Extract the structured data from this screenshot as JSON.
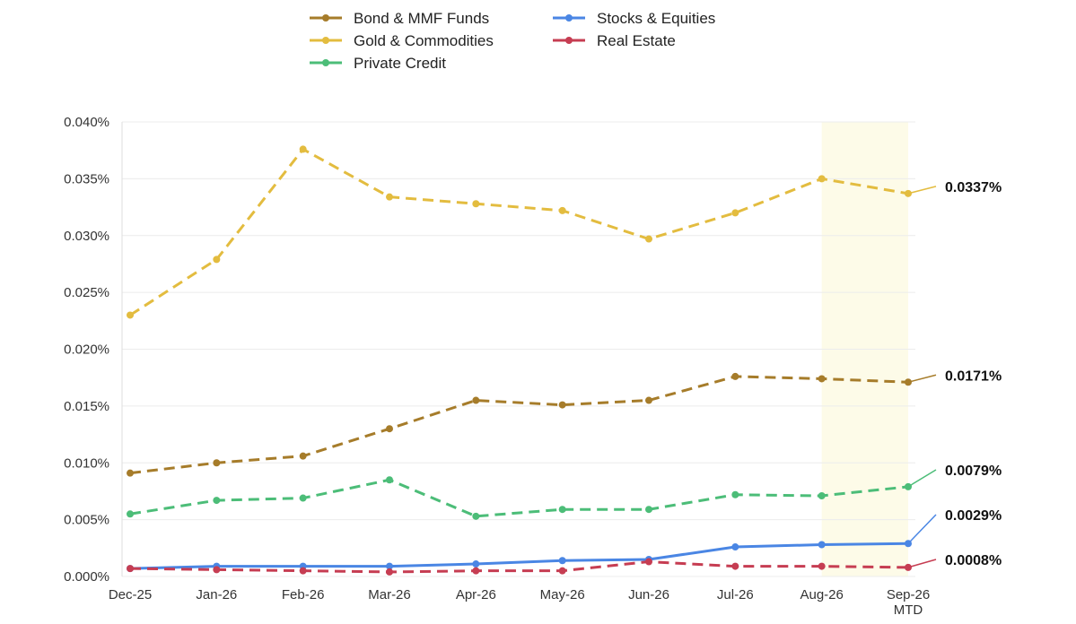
{
  "chart_data": {
    "type": "line",
    "categories": [
      "Dec-25",
      "Jan-26",
      "Feb-26",
      "Mar-26",
      "Apr-26",
      "May-26",
      "Jun-26",
      "Jul-26",
      "Aug-26",
      "Sep-26\nMTD"
    ],
    "ylim": [
      0,
      0.04
    ],
    "yticks": [
      "0.000%",
      "0.005%",
      "0.010%",
      "0.015%",
      "0.020%",
      "0.025%",
      "0.030%",
      "0.035%",
      "0.040%"
    ],
    "grid": "horizontal",
    "legend": "top-center",
    "highlight_categories": [
      "Aug-26",
      "Sep-26\nMTD"
    ],
    "highlight_color": "#fdfbe8",
    "series": [
      {
        "name": "Bond & MMF Funds",
        "color": "#a67c2a",
        "dash": true,
        "end_label": "0.0171%",
        "values": [
          0.0091,
          0.01,
          0.0106,
          0.013,
          0.0155,
          0.0151,
          0.0155,
          0.0176,
          0.0174,
          0.0171
        ]
      },
      {
        "name": "Gold & Commodities",
        "color": "#e3bc3f",
        "dash": true,
        "end_label": "0.0337%",
        "values": [
          0.023,
          0.0279,
          0.0376,
          0.0334,
          0.0328,
          0.0322,
          0.0297,
          0.032,
          0.035,
          0.0337
        ]
      },
      {
        "name": "Private Credit",
        "color": "#4cbd78",
        "dash": true,
        "end_label": "0.0079%",
        "values": [
          0.0055,
          0.0067,
          0.0069,
          0.0085,
          0.0053,
          0.0059,
          0.0059,
          0.0072,
          0.0071,
          0.0079
        ]
      },
      {
        "name": "Stocks & Equities",
        "color": "#4a86e4",
        "dash": false,
        "end_label": "0.0029%",
        "values": [
          0.0007,
          0.0009,
          0.0009,
          0.0009,
          0.0011,
          0.0014,
          0.0015,
          0.0026,
          0.0028,
          0.0029
        ]
      },
      {
        "name": "Real Estate",
        "color": "#c63d52",
        "dash": true,
        "end_label": "0.0008%",
        "values": [
          0.0007,
          0.0006,
          0.0005,
          0.0004,
          0.0005,
          0.0005,
          0.0013,
          0.0009,
          0.0009,
          0.0008
        ]
      }
    ]
  }
}
